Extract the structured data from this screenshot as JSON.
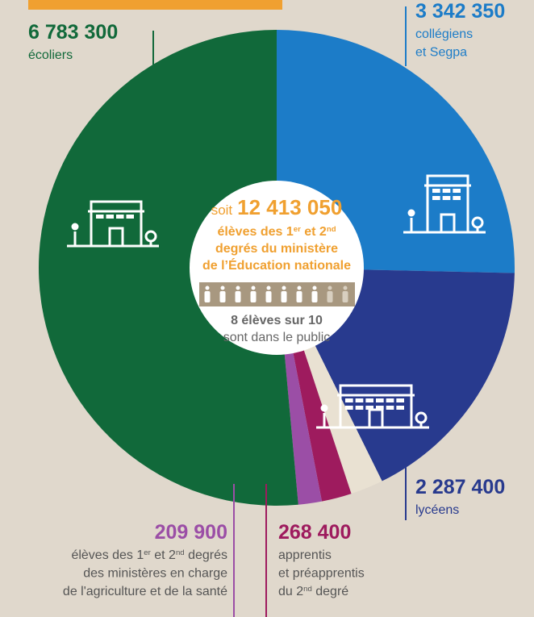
{
  "chart_data": {
    "type": "donut",
    "categories": [
      [
        [
          "collégiens"
        ],
        [
          "et Segpa"
        ]
      ],
      [
        [
          "lycéens"
        ]
      ],
      [
        [
          "apprentis"
        ],
        [
          "et préapprentis"
        ],
        [
          "du 2",
          "nd",
          " degré"
        ]
      ],
      [
        [
          "élèves des 1",
          "er",
          " et 2",
          "nd",
          " degrés"
        ],
        [
          "des ministères en charge"
        ],
        [
          "de l'agriculture et de la santé"
        ]
      ],
      [
        [
          "écoliers"
        ]
      ]
    ],
    "values": [
      3342350,
      2287400,
      268400,
      209900,
      6783300
    ],
    "value_labels": [
      "3 342 350",
      "2 287 400",
      "268 400",
      "209 900",
      "6 783 300"
    ],
    "colors": [
      "#1c7cc8",
      "#283a8e",
      "#9e1b5e",
      "#9b4ea6",
      "#11693a"
    ],
    "total_prefix": "soit",
    "total": "12 413 050",
    "center_text": [
      [
        "élèves des 1",
        "er",
        " et 2",
        "nd"
      ],
      [
        "degrés du ministère"
      ],
      [
        "de l’Éducation nationale"
      ]
    ],
    "public_note": [
      "8 élèves sur 10",
      "sont dans le public"
    ]
  }
}
